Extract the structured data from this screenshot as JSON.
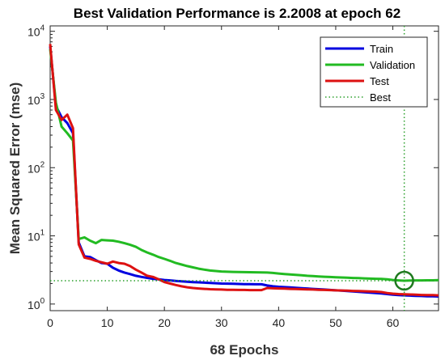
{
  "chart_data": {
    "type": "line",
    "title": "Best Validation Performance is 2.2008 at epoch 62",
    "xlabel": "68 Epochs",
    "ylabel": "Mean Squared Error  (mse)",
    "xlim": [
      0,
      68
    ],
    "ylim": [
      0.8,
      12000
    ],
    "yscale": "log",
    "xticks": [
      0,
      10,
      20,
      30,
      40,
      50,
      60
    ],
    "yticks": [
      {
        "base": "10",
        "exp": "0",
        "value": 1
      },
      {
        "base": "10",
        "exp": "1",
        "value": 10
      },
      {
        "base": "10",
        "exp": "2",
        "value": 100
      },
      {
        "base": "10",
        "exp": "3",
        "value": 1000
      },
      {
        "base": "10",
        "exp": "4",
        "value": 10000
      }
    ],
    "grid": false,
    "legend_position": "top-right",
    "best": {
      "epoch": 62,
      "value": 2.2008,
      "name": "Best",
      "color": "#2ca02c"
    },
    "series": [
      {
        "name": "Train",
        "color": "#0000e0",
        "x": [
          0,
          1,
          2,
          3,
          4,
          5,
          6,
          7,
          8,
          9,
          10,
          11,
          12,
          13,
          14,
          15,
          16,
          17,
          18,
          19,
          20,
          21,
          22,
          23,
          24,
          25,
          26,
          27,
          28,
          29,
          30,
          31,
          32,
          33,
          34,
          35,
          36,
          37,
          38,
          39,
          40,
          41,
          42,
          43,
          44,
          45,
          46,
          47,
          48,
          49,
          50,
          51,
          52,
          53,
          54,
          55,
          56,
          57,
          58,
          59,
          60,
          61,
          62,
          63,
          64,
          65,
          66,
          67,
          68
        ],
        "values": [
          6000,
          800,
          550,
          450,
          320,
          8.0,
          5.0,
          4.9,
          4.4,
          4.0,
          3.9,
          3.4,
          3.1,
          2.9,
          2.75,
          2.6,
          2.5,
          2.42,
          2.35,
          2.3,
          2.25,
          2.22,
          2.18,
          2.15,
          2.12,
          2.1,
          2.08,
          2.06,
          2.04,
          2.02,
          2.0,
          1.99,
          1.98,
          1.97,
          1.96,
          1.96,
          1.95,
          1.95,
          1.87,
          1.82,
          1.79,
          1.77,
          1.75,
          1.73,
          1.71,
          1.69,
          1.67,
          1.65,
          1.63,
          1.61,
          1.59,
          1.57,
          1.55,
          1.53,
          1.51,
          1.49,
          1.47,
          1.45,
          1.43,
          1.4,
          1.37,
          1.35,
          1.34,
          1.33,
          1.32,
          1.31,
          1.3,
          1.3,
          1.29
        ]
      },
      {
        "name": "Validation",
        "color": "#22bb22",
        "x": [
          0,
          1,
          2,
          3,
          4,
          5,
          6,
          7,
          8,
          9,
          10,
          11,
          12,
          13,
          14,
          15,
          16,
          17,
          18,
          19,
          20,
          21,
          22,
          23,
          24,
          25,
          26,
          27,
          28,
          29,
          30,
          31,
          32,
          33,
          34,
          35,
          36,
          37,
          38,
          39,
          40,
          41,
          42,
          43,
          44,
          45,
          46,
          47,
          48,
          49,
          50,
          51,
          52,
          53,
          54,
          55,
          56,
          57,
          58,
          59,
          60,
          61,
          62,
          63,
          64,
          65,
          66,
          67,
          68
        ],
        "values": [
          5500,
          900,
          400,
          320,
          250,
          9.0,
          9.5,
          8.5,
          7.8,
          8.7,
          8.6,
          8.5,
          8.2,
          7.8,
          7.4,
          6.9,
          6.2,
          5.7,
          5.3,
          4.9,
          4.6,
          4.3,
          4.0,
          3.8,
          3.6,
          3.45,
          3.3,
          3.2,
          3.1,
          3.05,
          3.0,
          2.98,
          2.96,
          2.95,
          2.94,
          2.93,
          2.92,
          2.91,
          2.9,
          2.86,
          2.8,
          2.76,
          2.72,
          2.68,
          2.64,
          2.6,
          2.57,
          2.54,
          2.51,
          2.49,
          2.47,
          2.45,
          2.43,
          2.41,
          2.4,
          2.38,
          2.36,
          2.35,
          2.34,
          2.3,
          2.25,
          2.22,
          2.2008,
          2.21,
          2.22,
          2.22,
          2.23,
          2.23,
          2.24
        ]
      },
      {
        "name": "Test",
        "color": "#dd1111",
        "x": [
          0,
          1,
          2,
          3,
          4,
          5,
          6,
          7,
          8,
          9,
          10,
          11,
          12,
          13,
          14,
          15,
          16,
          17,
          18,
          19,
          20,
          21,
          22,
          23,
          24,
          25,
          26,
          27,
          28,
          29,
          30,
          31,
          32,
          33,
          34,
          35,
          36,
          37,
          38,
          39,
          40,
          41,
          42,
          43,
          44,
          45,
          46,
          47,
          48,
          49,
          50,
          51,
          52,
          53,
          54,
          55,
          56,
          57,
          58,
          59,
          60,
          61,
          62,
          63,
          64,
          65,
          66,
          67,
          68
        ],
        "values": [
          6500,
          700,
          500,
          600,
          380,
          7.5,
          4.8,
          4.6,
          4.3,
          4.1,
          3.9,
          4.2,
          4.0,
          3.9,
          3.6,
          3.2,
          2.9,
          2.6,
          2.5,
          2.3,
          2.1,
          2.0,
          1.9,
          1.82,
          1.76,
          1.72,
          1.69,
          1.67,
          1.65,
          1.64,
          1.63,
          1.62,
          1.62,
          1.61,
          1.61,
          1.6,
          1.6,
          1.6,
          1.72,
          1.7,
          1.69,
          1.68,
          1.67,
          1.66,
          1.65,
          1.64,
          1.63,
          1.62,
          1.61,
          1.6,
          1.59,
          1.58,
          1.57,
          1.56,
          1.55,
          1.54,
          1.53,
          1.52,
          1.5,
          1.45,
          1.42,
          1.4,
          1.39,
          1.38,
          1.37,
          1.36,
          1.35,
          1.35,
          1.34
        ]
      }
    ]
  }
}
